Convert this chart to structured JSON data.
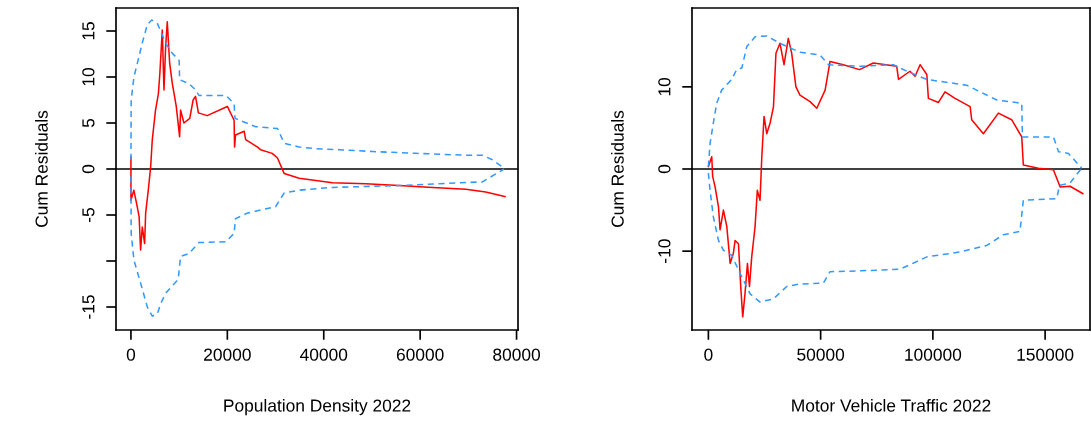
{
  "chart_data": [
    {
      "type": "line",
      "xlabel": "Population Density 2022",
      "ylabel": "Cum Residuals",
      "xlim": [
        -3100,
        80300
      ],
      "ylim": [
        -17.5,
        17.5
      ],
      "xticks": [
        0,
        20000,
        40000,
        60000,
        80000
      ],
      "yticks": [
        -15,
        {
          "value": -10,
          "label": null
        },
        -5,
        0,
        5,
        10,
        15
      ],
      "ref_lines": [
        {
          "axis": "y",
          "value": 0,
          "color": "#000000",
          "line_style": "solid"
        }
      ],
      "series": [
        {
          "color": "#ff0000",
          "line_style": "solid",
          "x": [
            0,
            0,
            0,
            600,
            1300,
            1700,
            2000,
            2350,
            2840,
            3050,
            3600,
            4100,
            4430,
            5100,
            5700,
            6000,
            6500,
            6850,
            7200,
            7540,
            8030,
            8580,
            9400,
            10100,
            10300,
            11000,
            12200,
            12900,
            13400,
            14000,
            15800,
            20000,
            21400,
            21500,
            21700,
            23500,
            23800,
            26200,
            26900,
            29300,
            30400,
            31800,
            34900,
            41800,
            48700,
            55600,
            62600,
            69500,
            73600,
            77600
          ],
          "values": [
            1.3,
            -1.2,
            -3.4,
            -2.3,
            -4.1,
            -5.2,
            -8.8,
            -6.3,
            -8.1,
            -4.8,
            -2.3,
            0.3,
            3.2,
            6.4,
            8.2,
            10.4,
            15.1,
            8.6,
            13.3,
            16.0,
            11.5,
            9.3,
            6.8,
            3.5,
            6.4,
            5.0,
            5.5,
            7.5,
            7.9,
            6.1,
            5.8,
            6.8,
            5.3,
            2.4,
            3.7,
            4.1,
            3.2,
            2.4,
            2.1,
            1.7,
            1.2,
            -0.5,
            -1.0,
            -1.5,
            -1.6,
            -1.8,
            -2.0,
            -2.2,
            -2.5,
            -3.0
          ]
        },
        {
          "color": "#3399ff",
          "line_style": "dashed",
          "x": [
            0,
            50,
            620,
            1660,
            2350,
            3400,
            4300,
            5500,
            7200,
            8200,
            10000,
            10100,
            12000,
            13400,
            14100,
            19700,
            21400,
            21600,
            25900,
            30400,
            31800,
            34900,
            38300,
            43200,
            50100,
            59100,
            69500,
            72900,
            75000,
            77400
          ],
          "values": [
            1.0,
            7.5,
            10,
            12.2,
            13.7,
            15.7,
            16.2,
            15.8,
            13.7,
            12.8,
            11.8,
            9.7,
            9.3,
            8.6,
            8.0,
            8.0,
            7.1,
            5.5,
            4.6,
            4.4,
            2.8,
            2.4,
            2.2,
            2.1,
            1.9,
            1.7,
            1.5,
            1.5,
            1.0,
            0.1
          ]
        },
        {
          "color": "#3399ff",
          "line_style": "dashed",
          "x": [
            0,
            50,
            620,
            2000,
            3400,
            4430,
            5500,
            6200,
            7200,
            9800,
            10300,
            12000,
            14100,
            19700,
            21400,
            21700,
            24100,
            28300,
            30000,
            31800,
            34900,
            41800,
            55600,
            64000,
            72900,
            77400
          ],
          "values": [
            -0.8,
            -7.0,
            -9.9,
            -12.4,
            -15.0,
            -16.0,
            -15.7,
            -14.6,
            -13.5,
            -12.0,
            -9.5,
            -9.2,
            -8.0,
            -7.9,
            -7.0,
            -5.4,
            -4.8,
            -4.3,
            -4.1,
            -2.6,
            -2.3,
            -2.0,
            -1.8,
            -1.6,
            -1.4,
            0
          ]
        }
      ]
    },
    {
      "type": "line",
      "xlabel": "Motor Vehicle Traffic 2022",
      "ylabel": "Cum Residuals",
      "xlim": [
        -7300,
        170000
      ],
      "ylim": [
        -19.6,
        19.6
      ],
      "xticks": [
        0,
        50000,
        100000,
        150000
      ],
      "yticks": [
        -10,
        0,
        10
      ],
      "ref_lines": [
        {
          "axis": "y",
          "value": 0,
          "color": "#000000",
          "line_style": "solid"
        }
      ],
      "series": [
        {
          "color": "#ff0000",
          "line_style": "solid",
          "x": [
            0,
            1500,
            1900,
            3000,
            4500,
            5200,
            6700,
            8200,
            9700,
            11100,
            11900,
            13400,
            14400,
            15300,
            16300,
            17400,
            18300,
            19300,
            20800,
            21800,
            23000,
            23800,
            24800,
            26000,
            27500,
            29000,
            30100,
            31900,
            33700,
            35600,
            37100,
            39000,
            40800,
            45300,
            48300,
            52000,
            54200,
            60100,
            67300,
            73500,
            83900,
            84700,
            89800,
            92100,
            94300,
            97300,
            98000,
            102500,
            105400,
            109900,
            116600,
            117300,
            122500,
            129200,
            135100,
            139600,
            140300,
            147000,
            153700,
            156700,
            161100,
            166800
          ],
          "values": [
            0.3,
            1.5,
            -0.9,
            -2.2,
            -4.6,
            -7.4,
            -5.0,
            -7.0,
            -11.5,
            -10.3,
            -8.7,
            -9.1,
            -14.3,
            -18.0,
            -15.2,
            -11.5,
            -14.3,
            -10.7,
            -7.0,
            -2.6,
            -3.8,
            1.5,
            6.4,
            4.3,
            5.6,
            7.6,
            14.1,
            15.3,
            12.7,
            15.9,
            14.1,
            10.0,
            9.0,
            8.2,
            7.4,
            9.6,
            13.1,
            12.7,
            12.1,
            12.9,
            12.5,
            10.9,
            11.9,
            11.3,
            12.7,
            11.5,
            8.6,
            8.1,
            9.4,
            8.6,
            7.6,
            6.0,
            4.3,
            6.8,
            6.0,
            3.9,
            0.5,
            0.1,
            -0.1,
            -2.2,
            -2.1,
            -3.0
          ]
        },
        {
          "color": "#3399ff",
          "line_style": "dashed",
          "x": [
            0,
            740,
            2200,
            3700,
            5900,
            10400,
            12600,
            14900,
            17100,
            20800,
            26000,
            31900,
            40800,
            49700,
            53500,
            67600,
            82400,
            88400,
            97300,
            115100,
            121000,
            128500,
            139600,
            139900,
            153700,
            156000,
            160400,
            166300
          ],
          "values": [
            0.3,
            3.1,
            5.6,
            8.0,
            9.6,
            10.9,
            12.1,
            12.3,
            14.9,
            16.1,
            16.2,
            15.3,
            14.2,
            13.9,
            12.7,
            12.5,
            12.7,
            11.9,
            10.9,
            10.2,
            9.4,
            8.4,
            8.0,
            3.9,
            3.9,
            2.1,
            1.9,
            0.1
          ]
        },
        {
          "color": "#3399ff",
          "line_style": "dashed",
          "x": [
            0,
            740,
            2200,
            4500,
            6700,
            10400,
            14100,
            18600,
            23000,
            29000,
            34900,
            40800,
            51200,
            54200,
            67600,
            85400,
            97300,
            112100,
            124000,
            131400,
            138800,
            140300,
            155200,
            156400,
            161100,
            166300
          ],
          "values": [
            -0.5,
            -2.6,
            -5.8,
            -8.7,
            -9.9,
            -10.5,
            -12.7,
            -15.2,
            -16.2,
            -15.8,
            -14.3,
            -14.0,
            -13.9,
            -12.5,
            -12.4,
            -12.2,
            -10.7,
            -10.1,
            -9.3,
            -8.0,
            -7.6,
            -3.8,
            -3.6,
            -2.0,
            -1.7,
            0.1
          ]
        }
      ]
    }
  ]
}
